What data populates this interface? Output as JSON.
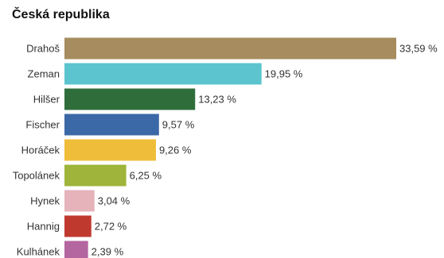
{
  "chart_data": {
    "type": "bar",
    "orientation": "horizontal",
    "title": "Česká republika",
    "categories": [
      "Drahoš",
      "Zeman",
      "Hilšer",
      "Fischer",
      "Horáček",
      "Topolánek",
      "Hynek",
      "Hannig",
      "Kulhánek"
    ],
    "values": [
      33.59,
      19.95,
      13.23,
      9.57,
      9.26,
      6.25,
      3.04,
      2.72,
      2.39
    ],
    "value_labels": [
      "33,59 %",
      "19,95 %",
      "13,23 %",
      "9,57 %",
      "9,26 %",
      "6,25 %",
      "3,04 %",
      "2,72 %",
      "2,39 %"
    ],
    "colors": [
      "#a68c5e",
      "#5bc4cf",
      "#2f6e3b",
      "#3b68a6",
      "#f0bd3a",
      "#9eb43a",
      "#e6b3bb",
      "#c0392f",
      "#b466a0"
    ],
    "xlabel": "",
    "ylabel": "",
    "grid": false,
    "legend": "none"
  }
}
